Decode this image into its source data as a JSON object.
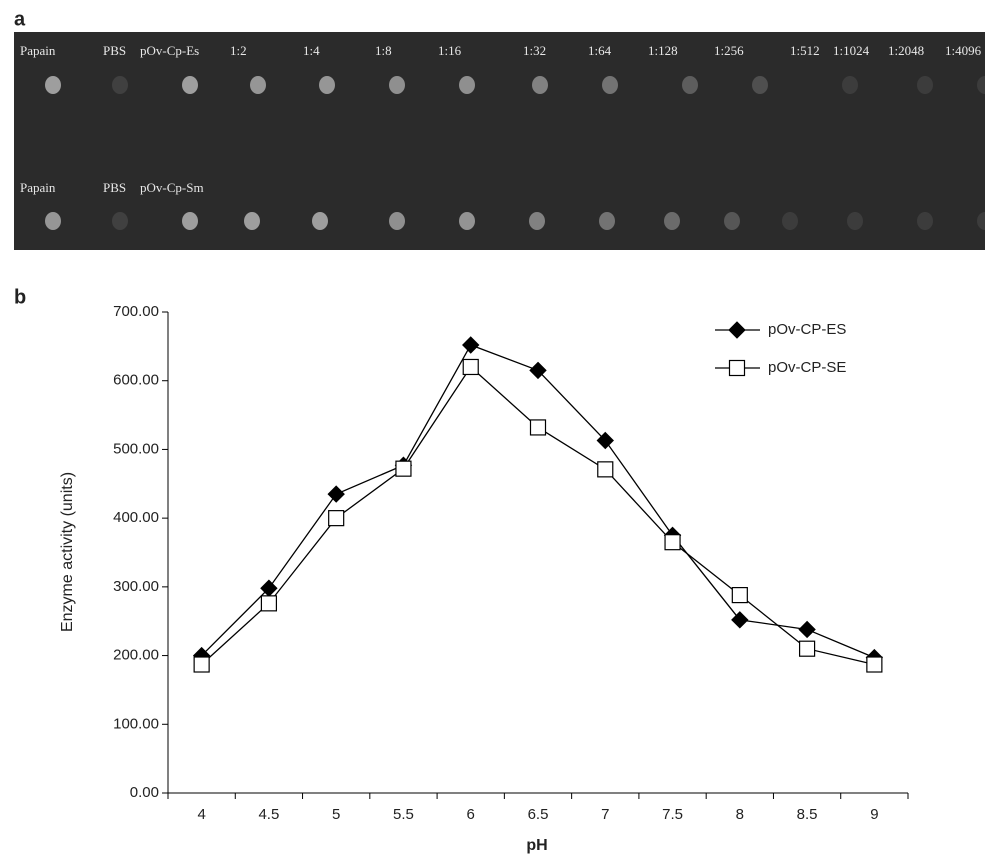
{
  "panel_a": {
    "letter": "a",
    "row1_labels": [
      "Papain",
      "PBS",
      "pOv-Cp-Es",
      "1:2",
      "1:4",
      "1:8",
      "1:16",
      "1:32",
      "1:64",
      "1:128",
      "1:256",
      "1:512",
      "1:1024",
      "1:2048",
      "1:4096"
    ],
    "row2_labels": [
      "Papain",
      "PBS",
      "pOv-Cp-Sm"
    ]
  },
  "panel_b": {
    "letter": "b"
  },
  "chart_data": {
    "type": "line",
    "x_label": "pH",
    "y_label": "Enzyme activity (units)",
    "categories": [
      "4",
      "4.5",
      "5",
      "5.5",
      "6",
      "6.5",
      "7",
      "7.5",
      "8",
      "8.5",
      "9"
    ],
    "series": [
      {
        "name": "pOv-CP-ES",
        "color": "#000000",
        "marker": "diamond",
        "marker_fill": "#000000",
        "values": [
          200,
          298,
          435,
          477,
          652,
          615,
          513,
          375,
          252,
          238,
          197
        ]
      },
      {
        "name": "pOv-CP-SE",
        "color": "#000000",
        "marker": "square",
        "marker_fill": "#ffffff",
        "values": [
          187,
          276,
          400,
          472,
          620,
          532,
          471,
          365,
          288,
          210,
          187
        ]
      }
    ],
    "ylim": [
      0,
      700
    ],
    "yticks": [
      {
        "value": 0,
        "label": "0.00"
      },
      {
        "value": 100,
        "label": "100.00"
      },
      {
        "value": 200,
        "label": "200.00"
      },
      {
        "value": 300,
        "label": "300.00"
      },
      {
        "value": 400,
        "label": "400.00"
      },
      {
        "value": 500,
        "label": "500.00"
      },
      {
        "value": 600,
        "label": "600.00"
      },
      {
        "value": 700,
        "label": "700.00"
      }
    ],
    "grid": false,
    "legend": "top-right"
  }
}
